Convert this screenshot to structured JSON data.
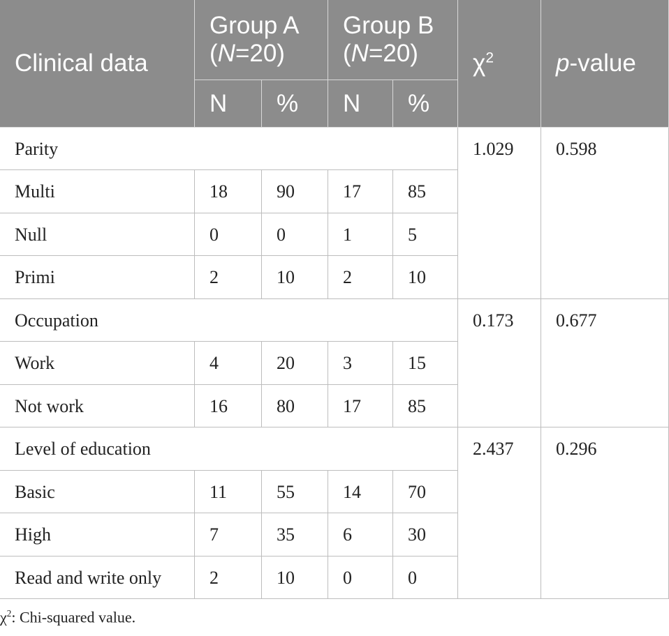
{
  "header": {
    "clinical": "Clinical data",
    "group_a": [
      "Group A (",
      "N",
      "=20)"
    ],
    "group_b": [
      "Group B (",
      "N",
      "=20)"
    ],
    "chi2": [
      "χ",
      "2"
    ],
    "p_value": [
      "p",
      "-value"
    ],
    "sub": [
      "N",
      "%",
      "N",
      "%"
    ]
  },
  "sections": [
    {
      "label": "Parity",
      "chi2": 1.029,
      "p": 0.598,
      "rows": [
        [
          "Multi",
          18,
          90,
          17,
          85
        ],
        [
          "Null",
          0,
          0,
          1,
          5
        ],
        [
          "Primi",
          2,
          10,
          2,
          10
        ]
      ]
    },
    {
      "label": "Occupation",
      "chi2": 0.173,
      "p": 0.677,
      "rows": [
        [
          "Work",
          4,
          20,
          3,
          15
        ],
        [
          "Not work",
          16,
          80,
          17,
          85
        ]
      ]
    },
    {
      "label": "Level of education",
      "chi2": 2.437,
      "p": 0.296,
      "rows": [
        [
          "Basic",
          11,
          55,
          14,
          70
        ],
        [
          "High",
          7,
          35,
          6,
          30
        ],
        [
          "Read and write only",
          2,
          10,
          0,
          0
        ]
      ]
    }
  ],
  "footnote": [
    "χ",
    "2",
    ": Chi-squared value."
  ]
}
